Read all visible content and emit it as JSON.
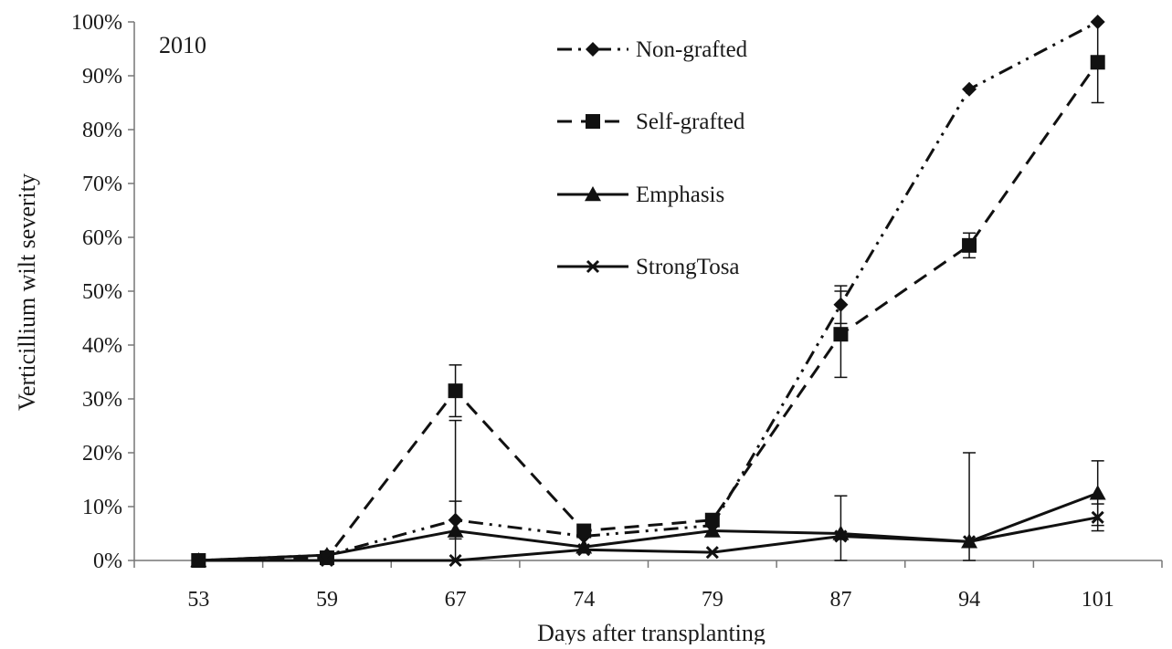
{
  "chart_data": {
    "type": "line",
    "title": "",
    "annotation": "2010",
    "xlabel": "Days after transplanting",
    "ylabel": "Verticillium wilt severity",
    "categories": [
      "53",
      "59",
      "67",
      "74",
      "79",
      "87",
      "94",
      "101"
    ],
    "y_ticks": [
      "0%",
      "10%",
      "20%",
      "30%",
      "40%",
      "50%",
      "60%",
      "70%",
      "80%",
      "90%",
      "100%"
    ],
    "ylim": [
      0,
      100
    ],
    "grid": false,
    "legend_position": "top-center",
    "series": [
      {
        "name": "Non-grafted",
        "marker": "diamond",
        "line_style": "dash-dot-dot",
        "values": [
          0,
          1,
          7.5,
          4.5,
          6.5,
          47.5,
          87.5,
          100
        ],
        "error": [
          0,
          0,
          3.5,
          0,
          0,
          3.5,
          0,
          0
        ]
      },
      {
        "name": "Self-grafted",
        "marker": "square",
        "line_style": "dashed",
        "values": [
          0,
          0.5,
          31.5,
          5.5,
          7.5,
          42,
          58.5,
          92.5
        ],
        "error": [
          0,
          0,
          4.8,
          0,
          0,
          8.0,
          2.3,
          7.5
        ]
      },
      {
        "name": "Emphasis",
        "marker": "triangle",
        "line_style": "solid",
        "values": [
          0,
          1,
          5.5,
          2.5,
          5.5,
          5,
          3.5,
          12.5
        ],
        "error": [
          0,
          0,
          20.5,
          0,
          0,
          7,
          16.5,
          6
        ]
      },
      {
        "name": "StrongTosa",
        "marker": "x",
        "line_style": "solid",
        "values": [
          0,
          0,
          0,
          2,
          1.5,
          4.5,
          3.5,
          8
        ],
        "error": [
          0,
          0,
          0,
          0,
          0,
          0,
          0,
          2.5
        ]
      }
    ]
  }
}
